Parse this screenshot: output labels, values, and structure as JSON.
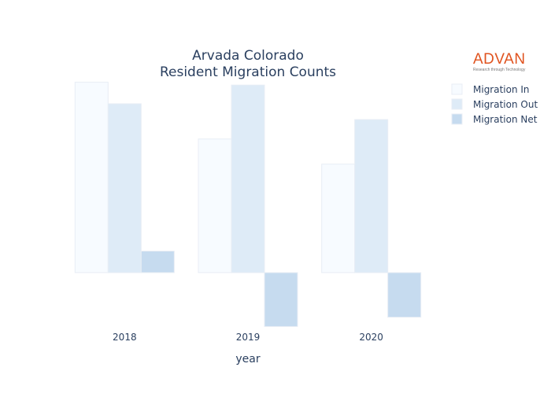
{
  "chart_data": {
    "type": "bar",
    "title": [
      "Arvada Colorado",
      "Resident Migration Counts"
    ],
    "xlabel": "year",
    "ylabel": "",
    "categories": [
      "2018",
      "2019",
      "2020"
    ],
    "series": [
      {
        "name": "Migration In",
        "values": [
          2650,
          1860,
          1510
        ]
      },
      {
        "name": "Migration Out",
        "values": [
          2350,
          2610,
          2130
        ]
      },
      {
        "name": "Migration Net",
        "values": [
          300,
          -750,
          -620
        ]
      }
    ],
    "ylim": [
      -800,
      2700
    ],
    "y_tick_labels_visible": false,
    "grid": false,
    "legend": "top-right",
    "colors": [
      "#f7fbff",
      "#deebf7",
      "#c6dbef"
    ]
  },
  "logo": {
    "name": "ADVAN",
    "tagline": "Research through Technology"
  }
}
